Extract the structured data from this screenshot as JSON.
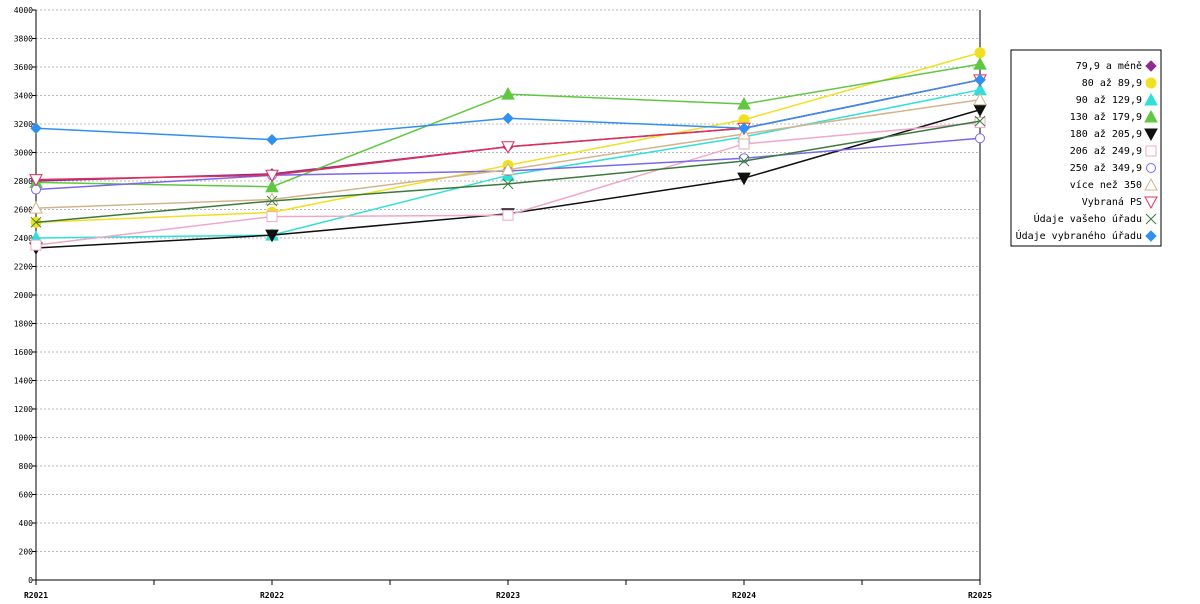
{
  "chart_data": {
    "type": "line",
    "title": "",
    "xlabel": "",
    "ylabel": "",
    "categories": [
      "R2021",
      "R2022",
      "R2023",
      "R2024",
      "R2025"
    ],
    "ylim": [
      0,
      4000
    ],
    "yticks": [
      0,
      200,
      400,
      600,
      800,
      1000,
      1200,
      1400,
      1600,
      1800,
      2000,
      2200,
      2400,
      2600,
      2800,
      3000,
      3200,
      3400,
      3600,
      3800,
      4000
    ],
    "grid": "horizontal dashed",
    "legend_position": "right",
    "series": [
      {
        "name": "79,9 a méně",
        "color": "#8e2c8e",
        "marker": "diamond-filled",
        "values": [
          2800,
          2850,
          3040,
          3170,
          3510
        ]
      },
      {
        "name": "80 až 89,9",
        "color": "#f0e020",
        "marker": "circle-filled",
        "values": [
          2510,
          2580,
          2910,
          3230,
          3700
        ]
      },
      {
        "name": "90 až 129,9",
        "color": "#30e0d8",
        "marker": "triangle-up-filled",
        "values": [
          2400,
          2420,
          2840,
          3110,
          3440
        ]
      },
      {
        "name": "130 až 179,9",
        "color": "#60c840",
        "marker": "triangle-up-filled",
        "values": [
          2790,
          2760,
          3410,
          3340,
          3620
        ]
      },
      {
        "name": "180 až 205,9",
        "color": "#101010",
        "marker": "triangle-down-filled",
        "values": [
          2330,
          2420,
          2570,
          2820,
          3300
        ]
      },
      {
        "name": "206 až 249,9",
        "color": "#f0a8c8",
        "marker": "square-open",
        "values": [
          2350,
          2550,
          2560,
          3060,
          3210
        ]
      },
      {
        "name": "250 až 349,9",
        "color": "#7b68ee",
        "marker": "circle-open",
        "values": [
          2740,
          2840,
          2870,
          2960,
          3100
        ]
      },
      {
        "name": "více než 350",
        "color": "#d2b48c",
        "marker": "triangle-up-open",
        "values": [
          2610,
          2670,
          2880,
          3130,
          3370
        ]
      },
      {
        "name": "Vybraná PS",
        "color": "#e0305a",
        "marker": "triangle-down-open",
        "values": [
          2810,
          2840,
          3040,
          3170,
          3510
        ]
      },
      {
        "name": "Údaje vašeho úřadu",
        "color": "#3a7a3a",
        "marker": "x-cross",
        "values": [
          2510,
          2660,
          2780,
          2940,
          3220
        ]
      },
      {
        "name": "Údaje vybraného úřadu",
        "color": "#3090f0",
        "marker": "diamond-filled",
        "values": [
          3170,
          3090,
          3240,
          3170,
          3510
        ]
      }
    ]
  }
}
